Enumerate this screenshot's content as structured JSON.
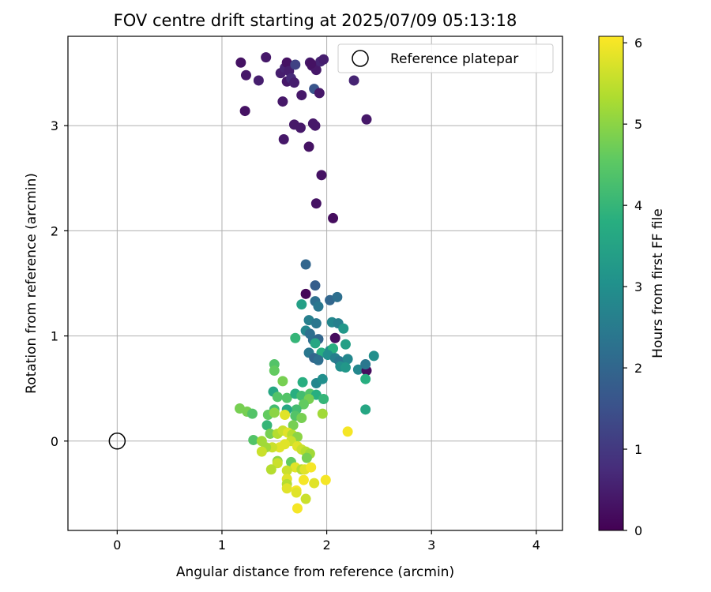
{
  "chart_data": {
    "type": "scatter",
    "title": "FOV centre drift starting at 2025/07/09 05:13:18",
    "xlabel": "Angular distance from reference (arcmin)",
    "ylabel": "Rotation from reference (arcmin)",
    "xlim": [
      -0.47,
      4.25
    ],
    "ylim": [
      -0.85,
      3.85
    ],
    "xticks": [
      "0",
      "1",
      "2",
      "3",
      "4"
    ],
    "yticks": [
      "0",
      "1",
      "2",
      "3"
    ],
    "grid": true,
    "legend": {
      "position": "top-right",
      "label": "Reference platepar"
    },
    "reference_point": {
      "x": 0,
      "y": 0
    },
    "colorbar": {
      "label": "Hours from first FF file",
      "colormap": "viridis",
      "range": [
        0,
        6.08
      ],
      "ticks": [
        "0",
        "1",
        "2",
        "3",
        "4",
        "5",
        "6"
      ]
    },
    "points": [
      {
        "x": 1.18,
        "y": 3.6,
        "h": 0.3
      },
      {
        "x": 1.23,
        "y": 3.48,
        "h": 0.4
      },
      {
        "x": 1.35,
        "y": 3.43,
        "h": 0.5
      },
      {
        "x": 1.42,
        "y": 3.65,
        "h": 0.4
      },
      {
        "x": 1.56,
        "y": 3.5,
        "h": 0.5
      },
      {
        "x": 1.6,
        "y": 3.55,
        "h": 0.6
      },
      {
        "x": 1.62,
        "y": 3.6,
        "h": 0.3
      },
      {
        "x": 1.64,
        "y": 3.52,
        "h": 0.5
      },
      {
        "x": 1.62,
        "y": 3.42,
        "h": 0.4
      },
      {
        "x": 1.66,
        "y": 3.45,
        "h": 0.7
      },
      {
        "x": 1.69,
        "y": 3.41,
        "h": 0.5
      },
      {
        "x": 1.7,
        "y": 3.58,
        "h": 1.2
      },
      {
        "x": 1.84,
        "y": 3.6,
        "h": 0.5
      },
      {
        "x": 1.86,
        "y": 3.57,
        "h": 0.4
      },
      {
        "x": 1.9,
        "y": 3.53,
        "h": 0.4
      },
      {
        "x": 1.94,
        "y": 3.61,
        "h": 0.6
      },
      {
        "x": 1.97,
        "y": 3.63,
        "h": 0.5
      },
      {
        "x": 1.85,
        "y": 3.59,
        "h": 0.3
      },
      {
        "x": 1.88,
        "y": 3.35,
        "h": 1.6
      },
      {
        "x": 1.93,
        "y": 3.31,
        "h": 0.4
      },
      {
        "x": 1.76,
        "y": 3.29,
        "h": 0.4
      },
      {
        "x": 1.58,
        "y": 3.23,
        "h": 0.4
      },
      {
        "x": 1.22,
        "y": 3.14,
        "h": 0.3
      },
      {
        "x": 2.26,
        "y": 3.43,
        "h": 0.6
      },
      {
        "x": 2.38,
        "y": 3.06,
        "h": 0.4
      },
      {
        "x": 1.87,
        "y": 3.02,
        "h": 0.4
      },
      {
        "x": 1.89,
        "y": 3.0,
        "h": 0.4
      },
      {
        "x": 1.69,
        "y": 3.01,
        "h": 0.4
      },
      {
        "x": 1.75,
        "y": 2.98,
        "h": 0.4
      },
      {
        "x": 1.59,
        "y": 2.87,
        "h": 0.4
      },
      {
        "x": 1.83,
        "y": 2.8,
        "h": 0.3
      },
      {
        "x": 1.95,
        "y": 2.53,
        "h": 0.3
      },
      {
        "x": 1.9,
        "y": 2.26,
        "h": 0.3
      },
      {
        "x": 2.06,
        "y": 2.12,
        "h": 0.2
      },
      {
        "x": 1.8,
        "y": 1.68,
        "h": 2.0
      },
      {
        "x": 1.89,
        "y": 1.48,
        "h": 1.8
      },
      {
        "x": 1.8,
        "y": 1.4,
        "h": 0.1
      },
      {
        "x": 1.76,
        "y": 1.3,
        "h": 3.4
      },
      {
        "x": 1.89,
        "y": 1.33,
        "h": 2.2
      },
      {
        "x": 1.92,
        "y": 1.28,
        "h": 2.4
      },
      {
        "x": 2.03,
        "y": 1.34,
        "h": 2.0
      },
      {
        "x": 2.1,
        "y": 1.37,
        "h": 2.2
      },
      {
        "x": 1.83,
        "y": 1.15,
        "h": 2.6
      },
      {
        "x": 1.9,
        "y": 1.12,
        "h": 2.4
      },
      {
        "x": 2.05,
        "y": 1.13,
        "h": 2.8
      },
      {
        "x": 2.11,
        "y": 1.12,
        "h": 2.6
      },
      {
        "x": 2.16,
        "y": 1.07,
        "h": 3.2
      },
      {
        "x": 1.8,
        "y": 1.05,
        "h": 2.8
      },
      {
        "x": 1.84,
        "y": 1.02,
        "h": 2.2
      },
      {
        "x": 1.7,
        "y": 0.98,
        "h": 4.0
      },
      {
        "x": 1.87,
        "y": 0.96,
        "h": 2.2
      },
      {
        "x": 1.92,
        "y": 0.97,
        "h": 2.0
      },
      {
        "x": 2.08,
        "y": 0.98,
        "h": 0.2
      },
      {
        "x": 2.18,
        "y": 0.92,
        "h": 3.4
      },
      {
        "x": 1.89,
        "y": 0.93,
        "h": 3.6
      },
      {
        "x": 1.95,
        "y": 0.84,
        "h": 3.8
      },
      {
        "x": 1.83,
        "y": 0.84,
        "h": 2.4
      },
      {
        "x": 2.03,
        "y": 0.86,
        "h": 3.0
      },
      {
        "x": 2.06,
        "y": 0.88,
        "h": 3.8
      },
      {
        "x": 1.88,
        "y": 0.79,
        "h": 2.0
      },
      {
        "x": 1.92,
        "y": 0.77,
        "h": 2.2
      },
      {
        "x": 2.01,
        "y": 0.82,
        "h": 3.0
      },
      {
        "x": 2.08,
        "y": 0.79,
        "h": 2.6
      },
      {
        "x": 2.12,
        "y": 0.76,
        "h": 2.4
      },
      {
        "x": 2.2,
        "y": 0.78,
        "h": 2.8
      },
      {
        "x": 2.13,
        "y": 0.71,
        "h": 3.0
      },
      {
        "x": 2.18,
        "y": 0.7,
        "h": 3.2
      },
      {
        "x": 2.3,
        "y": 0.68,
        "h": 2.8
      },
      {
        "x": 2.38,
        "y": 0.67,
        "h": 0.2
      },
      {
        "x": 2.37,
        "y": 0.73,
        "h": 2.4
      },
      {
        "x": 2.45,
        "y": 0.81,
        "h": 3.0
      },
      {
        "x": 2.37,
        "y": 0.59,
        "h": 3.8
      },
      {
        "x": 2.37,
        "y": 0.3,
        "h": 3.6
      },
      {
        "x": 1.9,
        "y": 0.55,
        "h": 2.8
      },
      {
        "x": 1.96,
        "y": 0.59,
        "h": 3.0
      },
      {
        "x": 1.5,
        "y": 0.73,
        "h": 4.4
      },
      {
        "x": 1.5,
        "y": 0.67,
        "h": 4.6
      },
      {
        "x": 1.58,
        "y": 0.57,
        "h": 4.8
      },
      {
        "x": 1.77,
        "y": 0.56,
        "h": 3.8
      },
      {
        "x": 1.49,
        "y": 0.47,
        "h": 3.6
      },
      {
        "x": 1.53,
        "y": 0.42,
        "h": 4.4
      },
      {
        "x": 1.62,
        "y": 0.41,
        "h": 4.4
      },
      {
        "x": 1.7,
        "y": 0.45,
        "h": 3.8
      },
      {
        "x": 1.76,
        "y": 0.43,
        "h": 4.2
      },
      {
        "x": 1.84,
        "y": 0.45,
        "h": 4.4
      },
      {
        "x": 1.9,
        "y": 0.44,
        "h": 3.8
      },
      {
        "x": 1.97,
        "y": 0.4,
        "h": 4.0
      },
      {
        "x": 1.83,
        "y": 0.4,
        "h": 4.8
      },
      {
        "x": 1.78,
        "y": 0.35,
        "h": 4.6
      },
      {
        "x": 1.71,
        "y": 0.3,
        "h": 4.2
      },
      {
        "x": 1.62,
        "y": 0.3,
        "h": 3.6
      },
      {
        "x": 1.5,
        "y": 0.3,
        "h": 4.2
      },
      {
        "x": 1.44,
        "y": 0.25,
        "h": 4.6
      },
      {
        "x": 1.17,
        "y": 0.31,
        "h": 4.8
      },
      {
        "x": 1.24,
        "y": 0.28,
        "h": 4.8
      },
      {
        "x": 1.29,
        "y": 0.26,
        "h": 4.4
      },
      {
        "x": 1.5,
        "y": 0.27,
        "h": 5.0
      },
      {
        "x": 1.6,
        "y": 0.25,
        "h": 5.8
      },
      {
        "x": 1.7,
        "y": 0.24,
        "h": 4.4
      },
      {
        "x": 1.76,
        "y": 0.22,
        "h": 4.8
      },
      {
        "x": 1.68,
        "y": 0.15,
        "h": 4.8
      },
      {
        "x": 1.43,
        "y": 0.15,
        "h": 4.0
      },
      {
        "x": 1.96,
        "y": 0.26,
        "h": 5.2
      },
      {
        "x": 1.3,
        "y": 0.01,
        "h": 4.4
      },
      {
        "x": 1.38,
        "y": 0.0,
        "h": 5.2
      },
      {
        "x": 1.46,
        "y": 0.07,
        "h": 4.8
      },
      {
        "x": 1.53,
        "y": 0.07,
        "h": 5.4
      },
      {
        "x": 1.58,
        "y": 0.1,
        "h": 5.6
      },
      {
        "x": 1.63,
        "y": 0.08,
        "h": 5.8
      },
      {
        "x": 1.67,
        "y": 0.06,
        "h": 5.4
      },
      {
        "x": 1.72,
        "y": 0.04,
        "h": 5.0
      },
      {
        "x": 1.66,
        "y": 0.0,
        "h": 5.6
      },
      {
        "x": 1.6,
        "y": -0.03,
        "h": 5.8
      },
      {
        "x": 1.55,
        "y": -0.06,
        "h": 5.8
      },
      {
        "x": 1.48,
        "y": -0.06,
        "h": 5.6
      },
      {
        "x": 1.42,
        "y": -0.06,
        "h": 5.2
      },
      {
        "x": 1.38,
        "y": -0.1,
        "h": 5.6
      },
      {
        "x": 1.72,
        "y": -0.05,
        "h": 5.8
      },
      {
        "x": 1.76,
        "y": -0.08,
        "h": 5.6
      },
      {
        "x": 1.8,
        "y": -0.1,
        "h": 5.4
      },
      {
        "x": 1.84,
        "y": -0.12,
        "h": 5.2
      },
      {
        "x": 1.81,
        "y": -0.16,
        "h": 4.8
      },
      {
        "x": 1.66,
        "y": -0.2,
        "h": 4.6
      },
      {
        "x": 1.53,
        "y": -0.19,
        "h": 5.0
      },
      {
        "x": 1.53,
        "y": -0.21,
        "h": 5.6
      },
      {
        "x": 1.7,
        "y": -0.25,
        "h": 5.8
      },
      {
        "x": 1.76,
        "y": -0.27,
        "h": 5.4
      },
      {
        "x": 1.79,
        "y": -0.27,
        "h": 5.8
      },
      {
        "x": 1.85,
        "y": -0.25,
        "h": 6.0
      },
      {
        "x": 1.47,
        "y": -0.27,
        "h": 5.4
      },
      {
        "x": 1.62,
        "y": -0.28,
        "h": 5.6
      },
      {
        "x": 1.62,
        "y": -0.36,
        "h": 5.8
      },
      {
        "x": 1.62,
        "y": -0.41,
        "h": 5.4
      },
      {
        "x": 1.62,
        "y": -0.45,
        "h": 5.8
      },
      {
        "x": 1.78,
        "y": -0.37,
        "h": 6.0
      },
      {
        "x": 1.88,
        "y": -0.4,
        "h": 5.8
      },
      {
        "x": 1.99,
        "y": -0.37,
        "h": 6.0
      },
      {
        "x": 1.71,
        "y": -0.47,
        "h": 6.0
      },
      {
        "x": 1.71,
        "y": -0.49,
        "h": 5.8
      },
      {
        "x": 1.8,
        "y": -0.55,
        "h": 5.6
      },
      {
        "x": 1.72,
        "y": -0.64,
        "h": 6.0
      },
      {
        "x": 2.2,
        "y": 0.09,
        "h": 6.0
      }
    ]
  }
}
